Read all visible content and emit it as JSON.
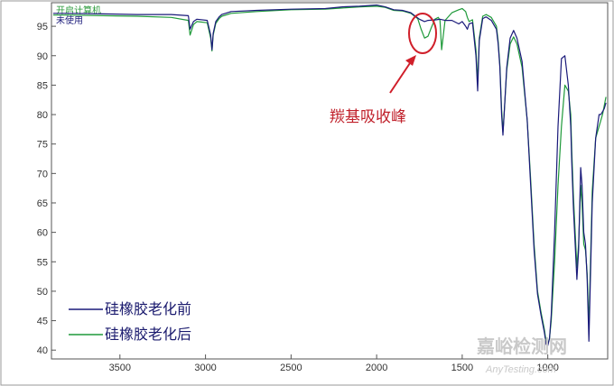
{
  "chart_data": {
    "type": "line",
    "xlim": [
      3900,
      650
    ],
    "ylim": [
      38.5,
      99
    ],
    "x_ticks": [
      3500,
      3000,
      2500,
      2000,
      1500,
      1000
    ],
    "y_ticks": [
      40,
      45,
      50,
      55,
      60,
      65,
      70,
      75,
      80,
      85,
      90,
      95
    ],
    "grid": false,
    "legend_position": "bottom-left",
    "header_lines": [
      "开启计算机",
      "未使用"
    ],
    "annotation": {
      "text": "羰基吸收峰",
      "x": 1720,
      "y": 93.5
    },
    "series": [
      {
        "name": "硅橡胶老化前",
        "color": "#1a1a7a",
        "x": [
          3890,
          3800,
          3600,
          3400,
          3200,
          3100,
          3090,
          3070,
          3050,
          2990,
          2970,
          2962,
          2955,
          2940,
          2920,
          2905,
          2850,
          2700,
          2500,
          2300,
          2200,
          2100,
          2000,
          1950,
          1900,
          1850,
          1800,
          1750,
          1720,
          1700,
          1650,
          1630,
          1600,
          1560,
          1520,
          1500,
          1480,
          1470,
          1460,
          1440,
          1420,
          1410,
          1400,
          1380,
          1360,
          1330,
          1300,
          1290,
          1280,
          1270,
          1262,
          1255,
          1240,
          1220,
          1200,
          1180,
          1150,
          1120,
          1100,
          1080,
          1060,
          1040,
          1020,
          1010,
          1000,
          990,
          980,
          960,
          940,
          920,
          900,
          880,
          866,
          860,
          850,
          840,
          830,
          820,
          808,
          800,
          790,
          780,
          770,
          760,
          740,
          720,
          700,
          690,
          680,
          670,
          660
        ],
        "y": [
          97.2,
          97.2,
          97.1,
          97.0,
          97.0,
          96.8,
          94.5,
          95.8,
          96.2,
          96.0,
          93.5,
          91.0,
          93.8,
          95.8,
          96.6,
          97.0,
          97.5,
          97.7,
          97.9,
          98.0,
          98.3,
          98.4,
          98.6,
          98.3,
          97.8,
          97.7,
          97.3,
          96.2,
          95.8,
          96.0,
          96.1,
          96.2,
          96.0,
          96.0,
          95.4,
          95.8,
          95.0,
          94.5,
          95.4,
          95.6,
          90.0,
          84.0,
          92.5,
          96.3,
          96.6,
          96.0,
          94.5,
          92.0,
          88.0,
          80.0,
          76.5,
          80.0,
          88.0,
          93.0,
          94.3,
          93.0,
          89.0,
          79.0,
          68.0,
          57.0,
          49.5,
          46.0,
          43.0,
          41.0,
          40.8,
          42.0,
          46.0,
          60.0,
          78.0,
          89.5,
          90.0,
          85.0,
          78.0,
          72.0,
          64.0,
          58.0,
          52.0,
          57.0,
          71.0,
          68.0,
          60.0,
          58.0,
          52.0,
          41.5,
          65.0,
          76.0,
          80.0,
          80.0,
          80.5,
          81.0,
          82.0
        ]
      },
      {
        "name": "硅橡胶老化后",
        "color": "#1f9a3a",
        "x": [
          3890,
          3800,
          3600,
          3400,
          3200,
          3100,
          3090,
          3070,
          3050,
          2990,
          2970,
          2962,
          2955,
          2940,
          2920,
          2905,
          2850,
          2700,
          2500,
          2300,
          2200,
          2100,
          2000,
          1950,
          1900,
          1850,
          1800,
          1760,
          1740,
          1720,
          1700,
          1680,
          1660,
          1640,
          1630,
          1620,
          1600,
          1560,
          1520,
          1500,
          1480,
          1470,
          1460,
          1440,
          1420,
          1410,
          1400,
          1380,
          1360,
          1330,
          1300,
          1290,
          1280,
          1270,
          1262,
          1255,
          1240,
          1220,
          1200,
          1180,
          1150,
          1120,
          1100,
          1080,
          1060,
          1040,
          1020,
          1010,
          1000,
          990,
          980,
          960,
          940,
          920,
          900,
          880,
          866,
          860,
          850,
          840,
          830,
          820,
          808,
          800,
          790,
          780,
          770,
          760,
          740,
          720,
          700,
          690,
          680,
          670,
          660
        ],
        "y": [
          96.9,
          96.9,
          96.8,
          96.7,
          96.5,
          96.0,
          93.5,
          95.3,
          95.8,
          95.6,
          93.0,
          90.8,
          93.5,
          95.5,
          96.3,
          96.7,
          97.2,
          97.5,
          97.8,
          97.9,
          98.1,
          98.3,
          98.4,
          98.2,
          97.7,
          97.6,
          97.2,
          96.3,
          94.5,
          93.0,
          93.3,
          94.8,
          96.2,
          96.5,
          96.0,
          91.0,
          96.0,
          97.3,
          97.8,
          98.0,
          97.5,
          96.5,
          95.8,
          96.1,
          91.0,
          85.5,
          93.0,
          96.7,
          97.0,
          96.5,
          95.0,
          92.5,
          88.5,
          81.0,
          77.0,
          80.0,
          87.5,
          92.0,
          93.2,
          92.0,
          88.0,
          79.0,
          69.0,
          58.0,
          50.0,
          46.5,
          43.5,
          41.5,
          41.0,
          42.0,
          45.0,
          55.0,
          68.0,
          78.0,
          85.0,
          84.0,
          80.0,
          74.0,
          66.0,
          60.0,
          54.0,
          58.0,
          68.0,
          65.0,
          58.0,
          57.0,
          53.0,
          44.0,
          67.0,
          76.0,
          78.0,
          79.0,
          80.0,
          81.5,
          83.0
        ]
      }
    ]
  },
  "watermark": {
    "cn": "嘉峪检测网",
    "en": "AnyTesting.com"
  }
}
